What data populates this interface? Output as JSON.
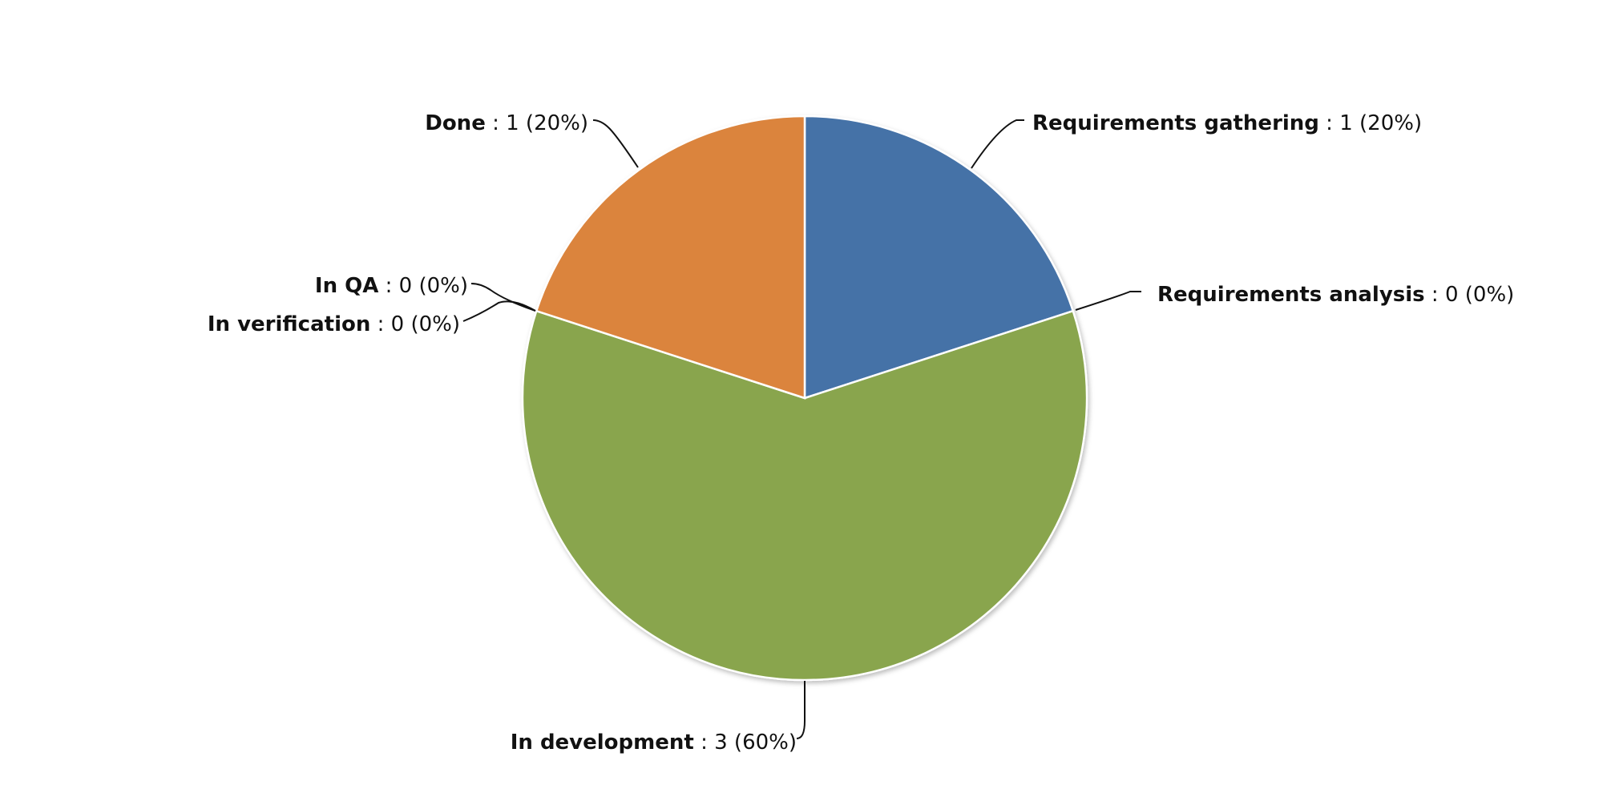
{
  "chart_data": {
    "type": "pie",
    "title": "",
    "total": 5,
    "slices": [
      {
        "label": "Requirements gathering",
        "value": 1,
        "percent": 20,
        "value_text": " : 1 (20%)",
        "color": "#4572a7"
      },
      {
        "label": "Requirements analysis",
        "value": 0,
        "percent": 0,
        "value_text": " : 0 (0%)",
        "color": "#aa4643"
      },
      {
        "label": "In development",
        "value": 3,
        "percent": 60,
        "value_text": " : 3 (60%)",
        "color": "#89a54e"
      },
      {
        "label": "In verification",
        "value": 0,
        "percent": 0,
        "value_text": " : 0 (0%)",
        "color": "#80699b"
      },
      {
        "label": "In QA",
        "value": 0,
        "percent": 0,
        "value_text": " : 0 (0%)",
        "color": "#3d96ae"
      },
      {
        "label": "Done",
        "value": 1,
        "percent": 20,
        "value_text": " : 1 (20%)",
        "color": "#db843d"
      }
    ]
  }
}
